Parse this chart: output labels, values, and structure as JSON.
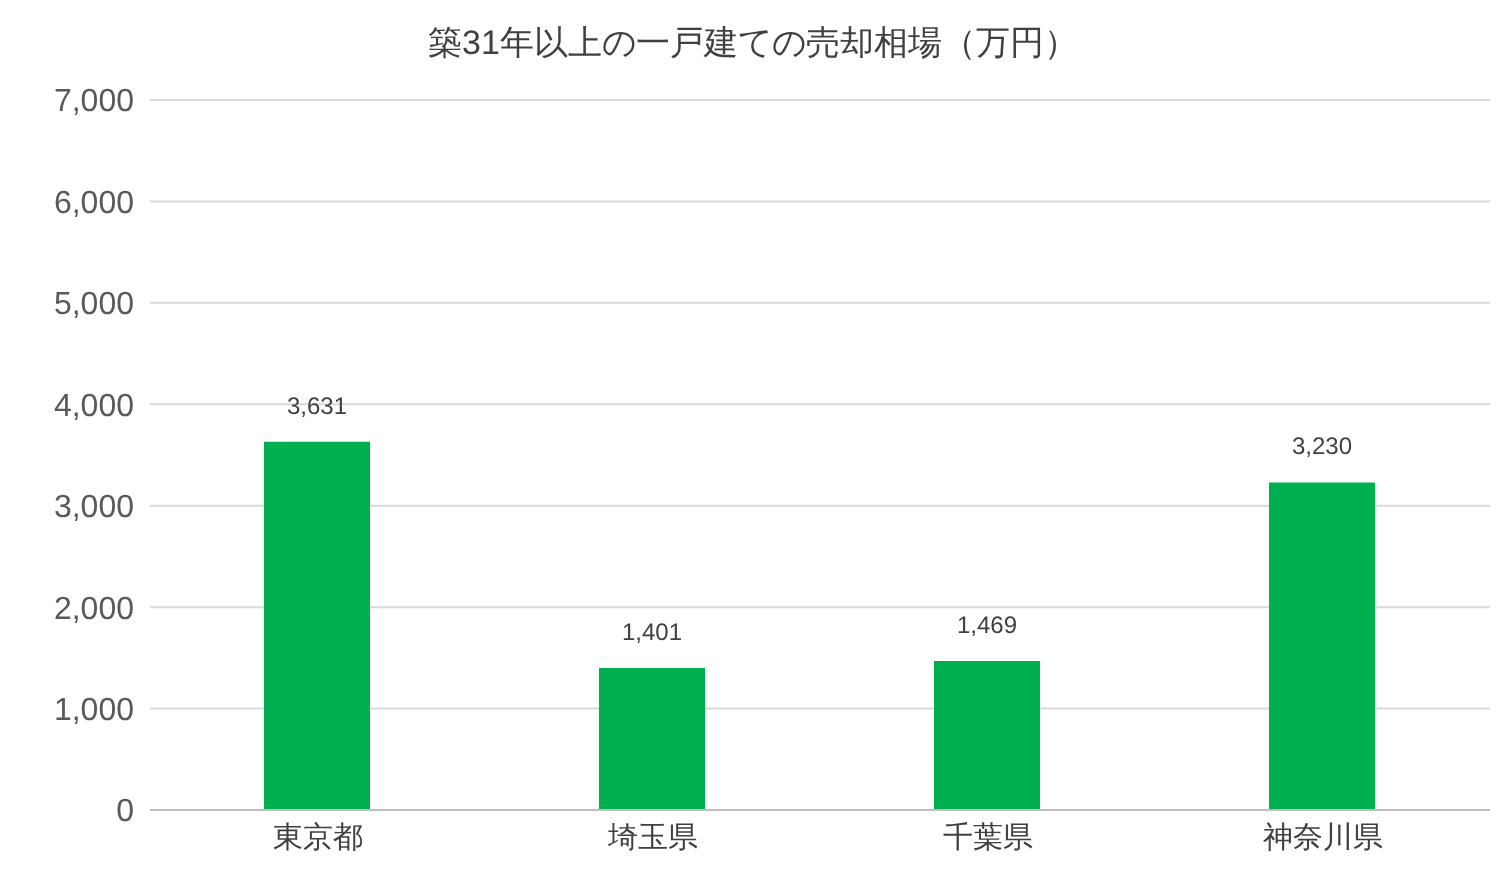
{
  "chart_data": {
    "type": "bar",
    "title": "築31年以上の一戸建ての売却相場（万円）",
    "categories": [
      "東京都",
      "埼玉県",
      "千葉県",
      "神奈川県"
    ],
    "values": [
      3631,
      1401,
      1469,
      3230
    ],
    "value_labels": [
      "3,631",
      "1,401",
      "1,469",
      "3,230"
    ],
    "color": "#00b050",
    "ylim": [
      0,
      7000
    ],
    "yticks": [
      0,
      {
        "value": 1000,
        "label": "1,000"
      },
      {
        "value": 2000,
        "label": "2,000"
      },
      {
        "value": 3000,
        "label": "3,000"
      },
      {
        "value": 4000,
        "label": "4,000"
      },
      {
        "value": 5000,
        "label": "5,000"
      },
      {
        "value": 6000,
        "label": "6,000"
      },
      {
        "value": 7000,
        "label": "7,000"
      }
    ],
    "grid": "y",
    "legend": false
  }
}
